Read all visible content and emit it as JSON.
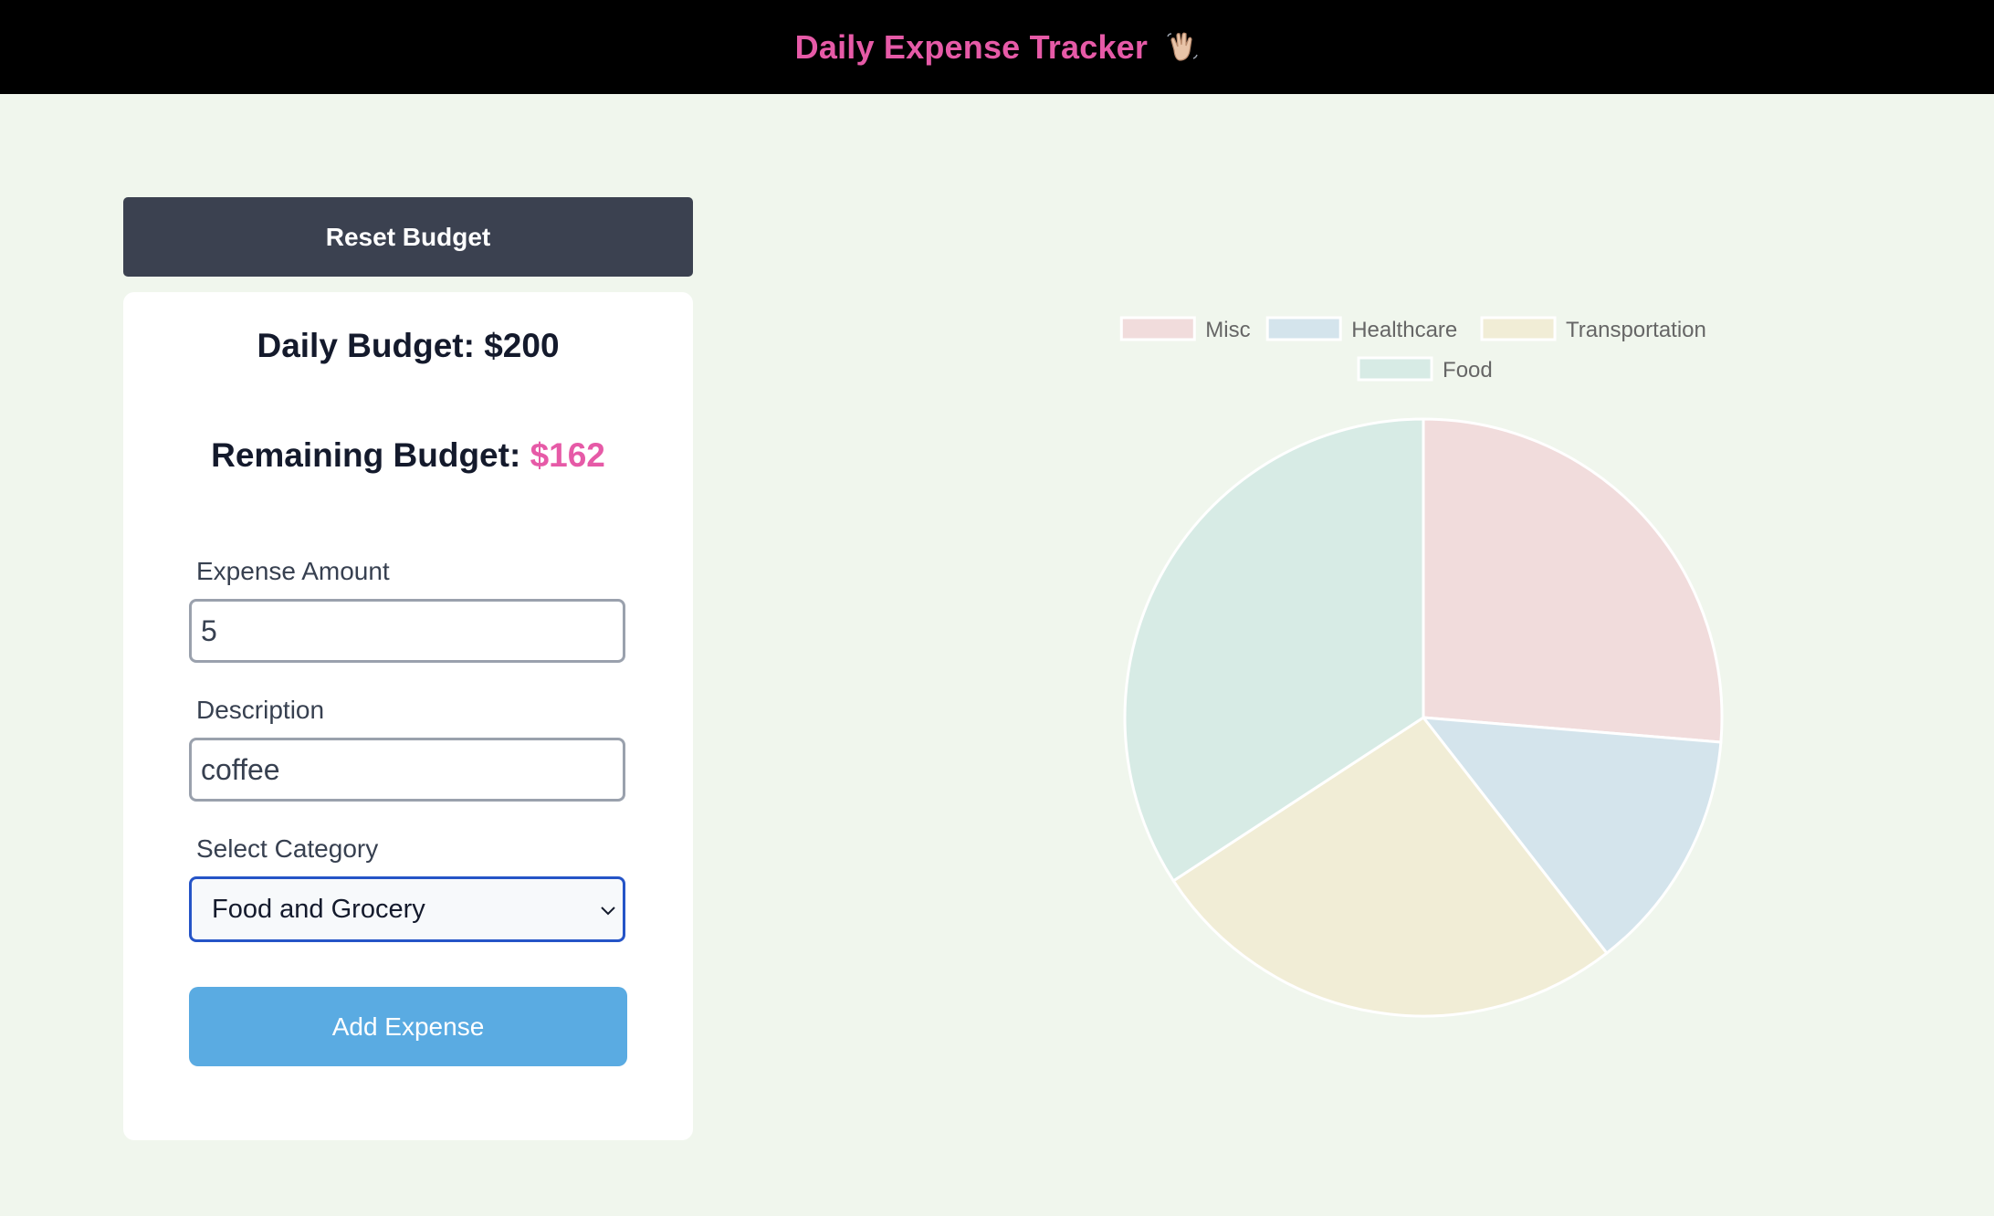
{
  "header": {
    "title": "Daily Expense Tracker"
  },
  "reset_button_label": "Reset Budget",
  "budget": {
    "daily_label": "Daily Budget: ",
    "daily_value": "$200",
    "remaining_label": "Remaining Budget: ",
    "remaining_value": "$162"
  },
  "form": {
    "amount_label": "Expense Amount",
    "amount_value": "5",
    "description_label": "Description",
    "description_value": "coffee",
    "category_label": "Select Category",
    "category_selected": "Food and Grocery",
    "submit_label": "Add Expense"
  },
  "colors": {
    "accent_pink": "#e65aa7",
    "header_bg": "#000000",
    "page_bg": "#f0f6ed",
    "reset_button_bg": "#3b4150",
    "add_button_bg": "#5aabe2",
    "select_border": "#2554c7"
  },
  "chart_data": {
    "type": "pie",
    "legend": "top",
    "categories": [
      "Misc",
      "Healthcare",
      "Transportation",
      "Food"
    ],
    "values": [
      10,
      5,
      10,
      13
    ],
    "colors": [
      "#f1dcdc",
      "#d4e4ec",
      "#f1edd6",
      "#d7ebe5"
    ]
  }
}
